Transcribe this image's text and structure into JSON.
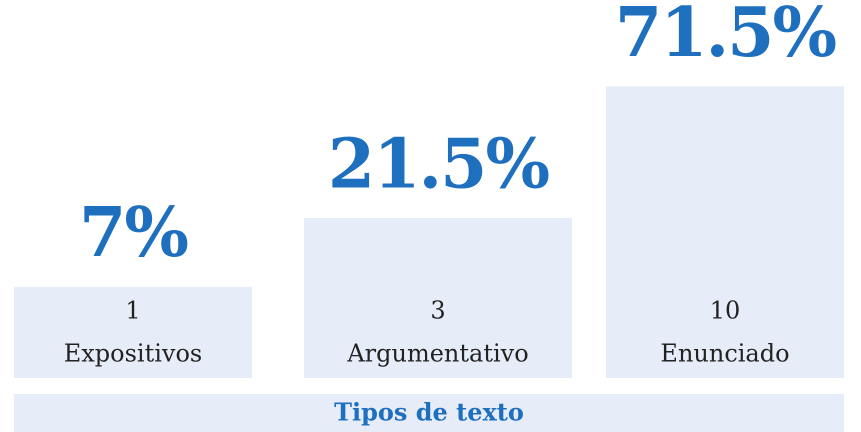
{
  "chart_data": {
    "type": "bar",
    "categories": [
      "Expositivos",
      "Argumentativo",
      "Enunciado"
    ],
    "counts": [
      1,
      3,
      10
    ],
    "values": [
      7,
      21.5,
      71.5
    ],
    "value_labels": [
      "7%",
      "21.5%",
      "71.5%"
    ],
    "color": "#e6ecf8",
    "x_label": "Tipos de texto"
  }
}
